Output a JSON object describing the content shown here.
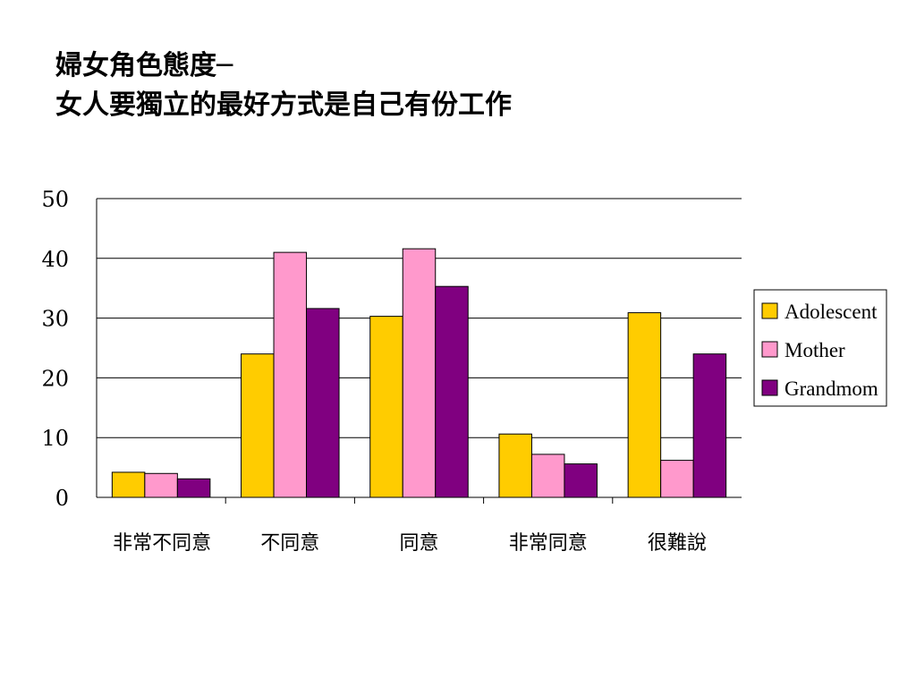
{
  "title": {
    "line1": "婦女角色態度─",
    "line2": "女人要獨立的最好方式是自己有份工作"
  },
  "chart_data": {
    "type": "bar",
    "categories": [
      "非常不同意",
      "不同意",
      "同意",
      "非常同意",
      "很難說"
    ],
    "series": [
      {
        "name": "Adolescent",
        "color": "#FFCC00",
        "values": [
          4.2,
          24.0,
          30.3,
          10.6,
          30.9
        ]
      },
      {
        "name": "Mother",
        "color": "#FF99CC",
        "values": [
          4.0,
          41.0,
          41.6,
          7.2,
          6.2
        ]
      },
      {
        "name": "Grandmom",
        "color": "#800080",
        "values": [
          3.1,
          31.6,
          35.3,
          5.6,
          24.0
        ]
      }
    ],
    "ylim": [
      0,
      50
    ],
    "yticks": [
      0,
      10,
      20,
      30,
      40,
      50
    ],
    "grid": true,
    "legend": "right"
  }
}
